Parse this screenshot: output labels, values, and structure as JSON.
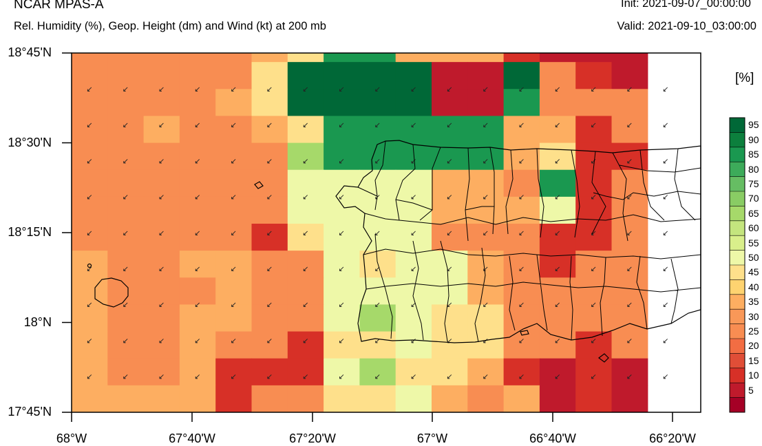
{
  "header": {
    "title": "NCAR MPAS-A",
    "subtitle": "Rel. Humidity (%), Geop. Height (dm) and Wind (kt) at 200 mb",
    "init": "Init: 2021-09-07_00:00:00",
    "valid": "Valid: 2021-09-10_03:00:00"
  },
  "colorbar": {
    "units": "[%]",
    "labels": [
      "95",
      "90",
      "85",
      "80",
      "75",
      "70",
      "65",
      "60",
      "55",
      "50",
      "45",
      "40",
      "35",
      "30",
      "25",
      "20",
      "15",
      "10",
      "5"
    ],
    "colors": [
      "#006837",
      "#0c7f3d",
      "#1a9850",
      "#3dab5a",
      "#66bd63",
      "#89cc64",
      "#a6d96a",
      "#c4e57e",
      "#d9ef8b",
      "#eef8a8",
      "#fee08b",
      "#fed370",
      "#fdae61",
      "#f99858",
      "#f88d52",
      "#f26d43",
      "#e04e37",
      "#d73027",
      "#bf1a2c",
      "#a50026"
    ]
  },
  "axes": {
    "y_labels": [
      "18°45'N",
      "18°30'N",
      "18°15'N",
      "18°N",
      "17°45'N"
    ],
    "x_labels": [
      "68°W",
      "67°40'W",
      "67°20'W",
      "67°W",
      "66°40'W",
      "66°20'W"
    ]
  },
  "map": {
    "grid_rows": [
      "2222234773331999",
      "2222248888998210",
      "2222348888997222",
      "2232234777773312",
      "2222226777773411",
      "2222225555332712",
      "2222225555333512",
      "2222214555222112",
      "3223322545532122",
      "3222322555532222",
      "3223322565442222",
      "3223221445442212",
      "3223111564431010",
      "3333122445323010"
    ],
    "palette": {
      "0": "#bf1a2c",
      "1": "#d73027",
      "2": "#f88d52",
      "3": "#fdae61",
      "4": "#fee08b",
      "5": "#eef8a8",
      "6": "#a6d96a",
      "7": "#1a9850",
      "8": "#006837",
      "9": "#bf1a2c"
    },
    "wind_barb_symbol": "↙"
  }
}
